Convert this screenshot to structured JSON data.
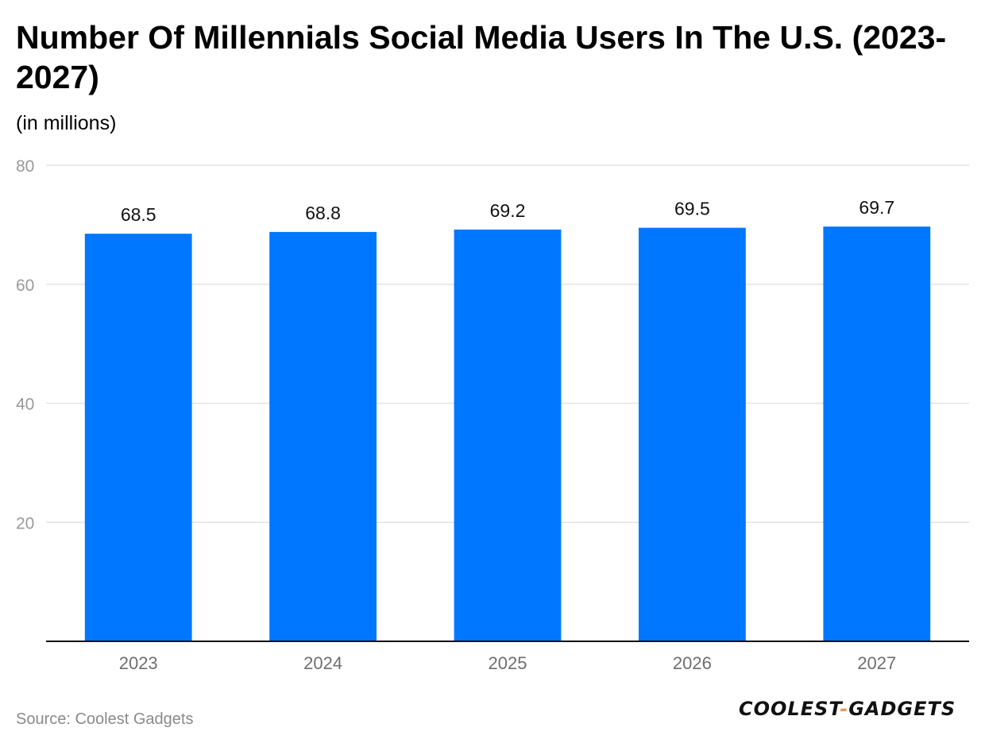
{
  "chart_data": {
    "type": "bar",
    "title": "Number Of Millennials Social Media Users In The U.S. (2023-2027)",
    "subtitle": "(in millions)",
    "categories": [
      "2023",
      "2024",
      "2025",
      "2026",
      "2027"
    ],
    "values": [
      68.5,
      68.8,
      69.2,
      69.5,
      69.7
    ],
    "value_labels": [
      "68.5",
      "68.8",
      "69.2",
      "69.5",
      "69.7"
    ],
    "yticks": [
      20,
      40,
      60,
      80
    ],
    "ylim": [
      0,
      80
    ],
    "xlabel": "",
    "ylabel": "",
    "grid": true,
    "bar_color": "#0077ff"
  },
  "source": "Source: Coolest Gadgets",
  "logo": {
    "part1": "COOLEST",
    "dash": "-",
    "part2": "GADGETS"
  }
}
